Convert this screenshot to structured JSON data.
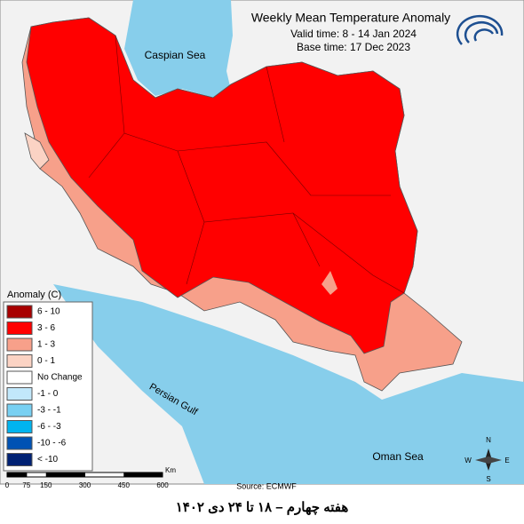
{
  "header": {
    "title": "Weekly Mean Temperature Anomaly",
    "valid_time": "Valid time: 8 - 14 Jan 2024",
    "base_time": "Base time: 17 Dec 2023"
  },
  "labels": {
    "caspian": "Caspian Sea",
    "gulf": "Persian Gulf",
    "oman": "Oman Sea",
    "source": "Source: ECMWF"
  },
  "legend": {
    "title": "Anomaly (C)",
    "items": [
      {
        "label": "6 - 10",
        "color": "#a80000"
      },
      {
        "label": "3 - 6",
        "color": "#ff0000"
      },
      {
        "label": "1 - 3",
        "color": "#f7a08a"
      },
      {
        "label": "0 - 1",
        "color": "#fbd3c4"
      },
      {
        "label": "No Change",
        "color": "#ffffff"
      },
      {
        "label": "-1 - 0",
        "color": "#c2e8fb"
      },
      {
        "label": "-3 - -1",
        "color": "#78d0f2"
      },
      {
        "label": "-6 - -3",
        "color": "#00b4ef"
      },
      {
        "label": "-10 - -6",
        "color": "#0052b4"
      },
      {
        "label": "< -10",
        "color": "#002173"
      }
    ]
  },
  "scale": {
    "ticks": [
      0,
      75,
      150,
      300,
      450,
      600
    ],
    "unit": "Km"
  },
  "compass": {
    "n": "N",
    "s": "S",
    "e": "E",
    "w": "W"
  },
  "caption": "هفته چهارم – ۱۸ تا ۲۴ دی ۱۴۰۲"
}
